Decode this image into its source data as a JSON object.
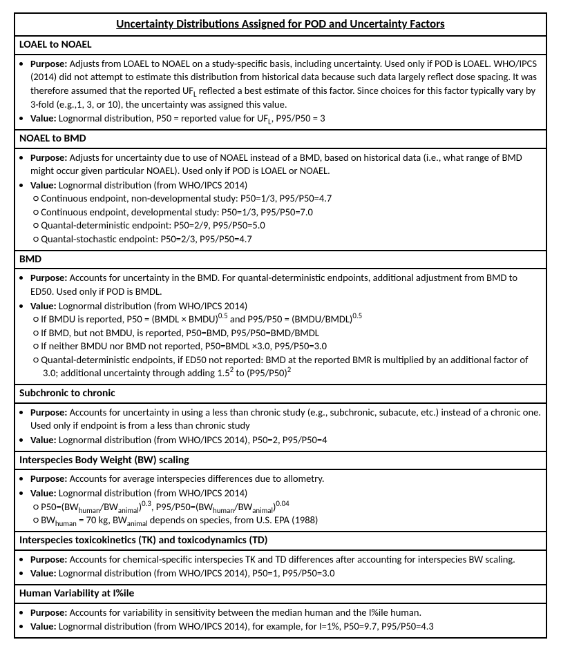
{
  "title": "Uncertainty Distributions Assigned for POD and Uncertainty Factors",
  "sections": [
    {
      "header": "LOAEL to NOAEL",
      "purpose": "Adjusts from LOAEL to NOAEL on a study-specific basis, including uncertainty.  Used only if POD is LOAEL.  WHO/IPCS (2014) did not attempt to estimate this distribution from historical data because such data largely reflect dose spacing.  It was therefore assumed that the reported UF<sub>L</sub> reflected a best estimate of this factor.  Since choices for this factor typically vary by 3-fold (e.g.,1, 3, or 10), the uncertainty was assigned this value.",
      "value": "Lognormal distribution, P50 = reported value for UF<sub>L</sub>, P95/P50 = 3",
      "subitems": []
    },
    {
      "header": "NOAEL to BMD",
      "purpose": "Adjusts for uncertainty due to use of NOAEL instead of a BMD, based on historical data (i.e., what range of BMD might occur given particular NOAEL).  Used only if POD is LOAEL or NOAEL.",
      "value": "Lognormal distribution (from WHO/IPCS 2014)",
      "subitems": [
        "Continuous endpoint, non-developmental study: P50=1/3, P95/P50=4.7",
        "Continuous endpoint, developmental study: P50=1/3, P95/P50=7.0",
        "Quantal-deterministic endpoint: P50=2/9, P95/P50=5.0",
        "Quantal-stochastic endpoint: P50=2/3, P95/P50=4.7"
      ]
    },
    {
      "header": "BMD",
      "purpose": "Accounts for uncertainty in the BMD.  For quantal-deterministic endpoints, additional adjustment from BMD to ED50.  Used only if POD is BMDL.",
      "value": "Lognormal distribution (from WHO/IPCS 2014)",
      "subitems": [
        "If BMDU is reported, P50 = (BMDL × BMDU)<sup>0.5</sup> and P95/P50 = (BMDU/BMDL)<sup>0.5</sup>",
        "If BMD, but not BMDU, is reported, P50=BMD, P95/P50=BMD/BMDL",
        "If neither BMDU nor BMD not reported, P50=BMDL ×3.0, P95/P50=3.0",
        "Quantal-deterministic endpoints, if ED50 not reported: BMD at the reported BMR is multiplied by an additional factor of 3.0; additional uncertainty through adding 1.5<sup>2</sup> to (P95/P50)<sup>2</sup>"
      ]
    },
    {
      "header": "Subchronic to chronic",
      "purpose": "Accounts for uncertainty in using a less than chronic study (e.g., subchronic, subacute, etc.) instead of a chronic one.  Used only if endpoint is from a less than chronic study",
      "value": "Lognormal distribution (from WHO/IPCS 2014), P50=2, P95/P50=4",
      "subitems": []
    },
    {
      "header": "Interspecies Body Weight (BW) scaling",
      "purpose": "Accounts for average interspecies differences due to allometry.",
      "value": "Lognormal distribution (from WHO/IPCS 2014)",
      "subitems": [
        "P50=(BW<sub>human</sub>/BW<sub>animal</sub>)<sup>0.3</sup>, P95/P50=(BW<sub>human</sub>/BW<sub>animal</sub>)<sup>0.04</sup>",
        "BW<sub>human</sub> = 70 kg, BW<sub>animal</sub> depends on species, from U.S. EPA (1988)"
      ]
    },
    {
      "header": "Interspecies toxicokinetics (TK) and toxicodynamics (TD)",
      "purpose": "Accounts for chemical-specific interspecies TK and TD differences after accounting for interspecies BW scaling.",
      "value": "Lognormal distribution (from WHO/IPCS 2014), P50=1, P95/P50=3.0",
      "subitems": []
    },
    {
      "header": "Human Variability at I%ile",
      "purpose": "Accounts for variability in sensitivity between the median human and the I%ile human.",
      "value": "Lognormal distribution (from WHO/IPCS 2014), for example, for I=1%, P50=9.7, P95/P50=4.3",
      "subitems": []
    }
  ],
  "labels": {
    "purpose": "Purpose:",
    "value": "Value:"
  }
}
